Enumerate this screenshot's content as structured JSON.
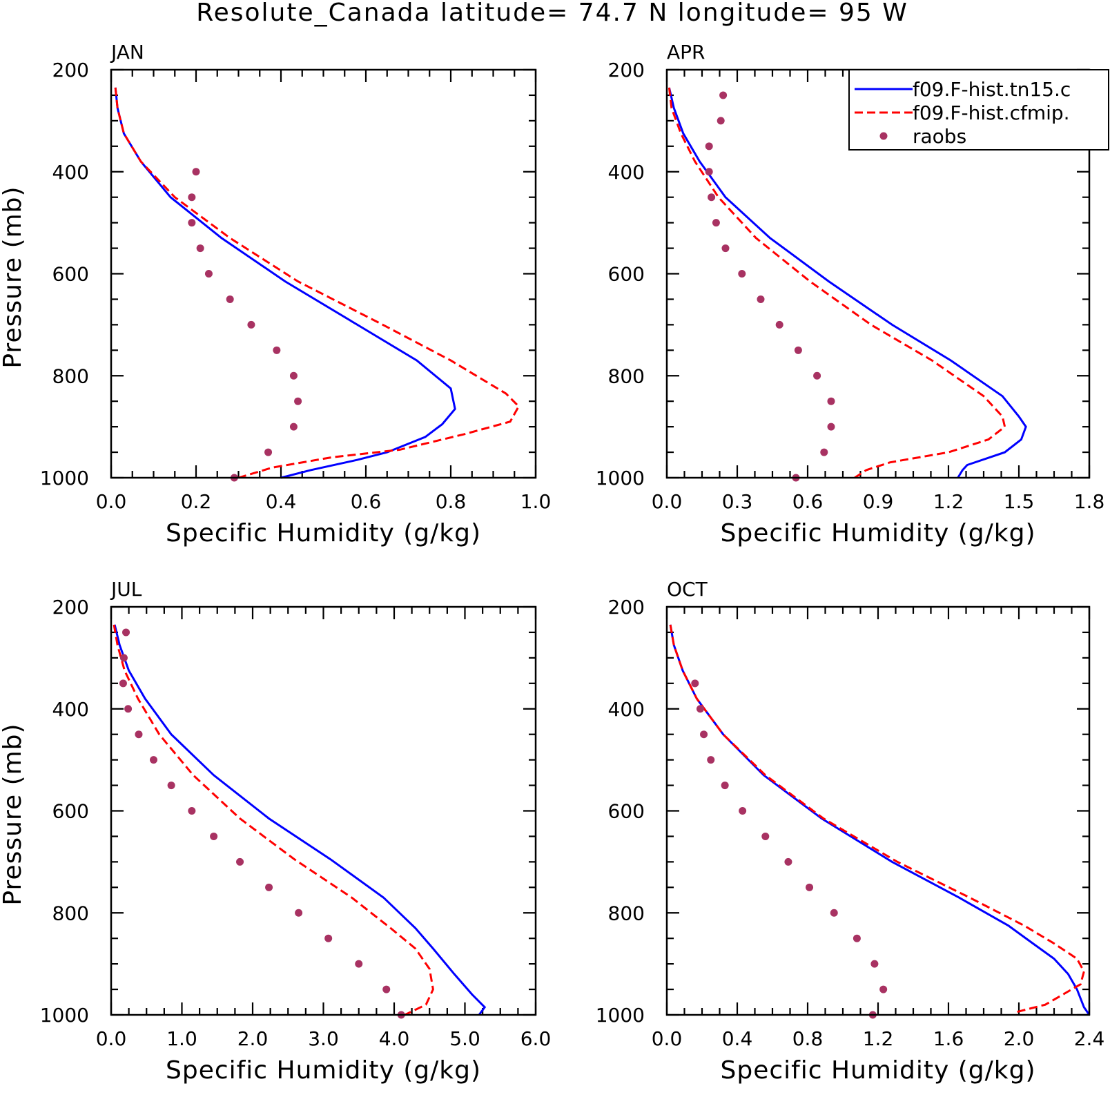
{
  "title": "Resolute_Canada  latitude= 74.7 N longitude= 95 W",
  "colors": {
    "model1": "#0000ff",
    "model2": "#ff0000",
    "obs": "#a83262",
    "axis": "#000000"
  },
  "legend": {
    "placement": "top-right of APR panel",
    "entries": [
      {
        "label": "f09.F-hist.tn15.c",
        "style": "solid",
        "color": "#0000ff"
      },
      {
        "label": "f09.F-hist.cfmip.",
        "style": "dashed",
        "color": "#ff0000"
      },
      {
        "label": "raobs",
        "style": "dot",
        "color": "#a83262"
      }
    ]
  },
  "chart_data": [
    {
      "type": "line",
      "panel_label": "JAN",
      "xlabel": "Specific Humidity (g/kg)",
      "ylabel": "Pressure (mb)",
      "xlim": [
        0,
        1.0
      ],
      "ylim": [
        1000,
        200
      ],
      "xticks": [
        "0.0",
        "0.2",
        "0.4",
        "0.6",
        "0.8",
        "1.0"
      ],
      "yticks": [
        "200",
        "400",
        "600",
        "800",
        "1000"
      ],
      "series": [
        {
          "name": "f09.F-hist.tn15.c",
          "style": "solid",
          "q": [
            0.01,
            0.015,
            0.03,
            0.07,
            0.14,
            0.26,
            0.41,
            0.58,
            0.72,
            0.8,
            0.81,
            0.78,
            0.74,
            0.65,
            0.58,
            0.47,
            0.4
          ],
          "p": [
            235,
            275,
            325,
            380,
            450,
            530,
            615,
            700,
            770,
            825,
            865,
            895,
            920,
            950,
            965,
            985,
            1000
          ]
        },
        {
          "name": "f09.F-hist.cfmip.",
          "style": "dashed",
          "q": [
            0.01,
            0.015,
            0.03,
            0.07,
            0.15,
            0.28,
            0.44,
            0.64,
            0.8,
            0.93,
            0.96,
            0.94,
            0.83,
            0.68,
            0.52,
            0.38,
            0.3
          ],
          "p": [
            235,
            275,
            325,
            380,
            450,
            530,
            615,
            700,
            770,
            835,
            860,
            890,
            915,
            945,
            960,
            980,
            1000
          ]
        },
        {
          "name": "raobs",
          "style": "dot",
          "q": [
            0.2,
            0.19,
            0.19,
            0.21,
            0.23,
            0.28,
            0.33,
            0.39,
            0.43,
            0.44,
            0.43,
            0.37,
            0.29
          ],
          "p": [
            400,
            450,
            500,
            550,
            600,
            650,
            700,
            750,
            800,
            850,
            900,
            950,
            1000
          ]
        }
      ]
    },
    {
      "type": "line",
      "panel_label": "APR",
      "xlabel": "Specific Humidity (g/kg)",
      "ylabel": "",
      "xlim": [
        0,
        1.8
      ],
      "ylim": [
        1000,
        200
      ],
      "xticks": [
        "0.0",
        "0.3",
        "0.6",
        "0.9",
        "1.2",
        "1.5",
        "1.8"
      ],
      "yticks": [
        "200",
        "400",
        "600",
        "800",
        "1000"
      ],
      "series": [
        {
          "name": "f09.F-hist.tn15.c",
          "style": "solid",
          "q": [
            0.01,
            0.03,
            0.07,
            0.14,
            0.25,
            0.44,
            0.69,
            0.96,
            1.21,
            1.43,
            1.5,
            1.53,
            1.51,
            1.44,
            1.28,
            1.26,
            1.24
          ],
          "p": [
            235,
            275,
            325,
            380,
            450,
            530,
            615,
            700,
            770,
            840,
            880,
            900,
            925,
            950,
            975,
            985,
            1000
          ]
        },
        {
          "name": "f09.F-hist.cfmip.",
          "style": "dashed",
          "q": [
            0.01,
            0.02,
            0.06,
            0.12,
            0.22,
            0.38,
            0.61,
            0.87,
            1.13,
            1.35,
            1.43,
            1.44,
            1.37,
            1.2,
            0.95,
            0.85,
            0.8
          ],
          "p": [
            235,
            275,
            325,
            380,
            450,
            530,
            615,
            700,
            770,
            840,
            880,
            900,
            925,
            950,
            970,
            985,
            1000
          ]
        },
        {
          "name": "raobs",
          "style": "dot",
          "q": [
            0.24,
            0.23,
            0.18,
            0.18,
            0.19,
            0.21,
            0.25,
            0.32,
            0.4,
            0.48,
            0.56,
            0.64,
            0.7,
            0.7,
            0.67,
            0.55
          ],
          "p": [
            250,
            300,
            350,
            400,
            450,
            500,
            550,
            600,
            650,
            700,
            750,
            800,
            850,
            900,
            950,
            1000
          ]
        }
      ]
    },
    {
      "type": "line",
      "panel_label": "JUL",
      "xlabel": "Specific Humidity (g/kg)",
      "ylabel": "Pressure (mb)",
      "xlim": [
        0,
        6.0
      ],
      "ylim": [
        1000,
        200
      ],
      "xticks": [
        "0.0",
        "1.0",
        "2.0",
        "3.0",
        "4.0",
        "5.0",
        "6.0"
      ],
      "yticks": [
        "200",
        "400",
        "600",
        "800",
        "1000"
      ],
      "series": [
        {
          "name": "f09.F-hist.tn15.c",
          "style": "solid",
          "q": [
            0.05,
            0.12,
            0.25,
            0.48,
            0.85,
            1.45,
            2.23,
            3.1,
            3.85,
            4.3,
            4.55,
            4.85,
            5.1,
            5.28,
            5.2
          ],
          "p": [
            235,
            275,
            325,
            380,
            450,
            530,
            615,
            695,
            770,
            830,
            870,
            920,
            960,
            985,
            1000
          ]
        },
        {
          "name": "f09.F-hist.cfmip.",
          "style": "dashed",
          "q": [
            0.04,
            0.09,
            0.19,
            0.38,
            0.68,
            1.16,
            1.82,
            2.59,
            3.4,
            3.95,
            4.3,
            4.5,
            4.55,
            4.45,
            4.15
          ],
          "p": [
            235,
            275,
            325,
            380,
            450,
            530,
            615,
            695,
            770,
            830,
            870,
            910,
            950,
            980,
            1000
          ]
        },
        {
          "name": "raobs",
          "style": "dot",
          "q": [
            0.21,
            0.18,
            0.17,
            0.24,
            0.39,
            0.6,
            0.85,
            1.14,
            1.45,
            1.82,
            2.23,
            2.65,
            3.07,
            3.5,
            3.89,
            4.1
          ],
          "p": [
            250,
            300,
            350,
            400,
            450,
            500,
            550,
            600,
            650,
            700,
            750,
            800,
            850,
            900,
            950,
            1000
          ]
        }
      ]
    },
    {
      "type": "line",
      "panel_label": "OCT",
      "xlabel": "Specific Humidity (g/kg)",
      "ylabel": "",
      "xlim": [
        0,
        2.4
      ],
      "ylim": [
        1000,
        200
      ],
      "xticks": [
        "0.0",
        "0.4",
        "0.8",
        "1.2",
        "1.6",
        "2.0",
        "2.4"
      ],
      "yticks": [
        "200",
        "400",
        "600",
        "800",
        "1000"
      ],
      "series": [
        {
          "name": "f09.F-hist.tn15.c",
          "style": "solid",
          "q": [
            0.02,
            0.04,
            0.09,
            0.17,
            0.32,
            0.55,
            0.88,
            1.28,
            1.66,
            1.94,
            2.08,
            2.2,
            2.28,
            2.33,
            2.37,
            2.4
          ],
          "p": [
            235,
            275,
            325,
            380,
            450,
            530,
            615,
            700,
            770,
            825,
            860,
            890,
            920,
            950,
            985,
            1000
          ]
        },
        {
          "name": "f09.F-hist.cfmip.",
          "style": "dashed",
          "q": [
            0.02,
            0.04,
            0.09,
            0.17,
            0.32,
            0.56,
            0.89,
            1.31,
            1.72,
            2.03,
            2.2,
            2.33,
            2.37,
            2.35,
            2.15,
            1.98
          ],
          "p": [
            235,
            275,
            325,
            380,
            450,
            530,
            615,
            700,
            770,
            825,
            860,
            890,
            915,
            940,
            980,
            995
          ]
        },
        {
          "name": "raobs",
          "style": "dot",
          "q": [
            0.16,
            0.19,
            0.21,
            0.25,
            0.33,
            0.43,
            0.56,
            0.69,
            0.81,
            0.95,
            1.08,
            1.18,
            1.23,
            1.17
          ],
          "p": [
            350,
            400,
            450,
            500,
            550,
            600,
            650,
            700,
            750,
            800,
            850,
            900,
            950,
            1000
          ]
        }
      ]
    }
  ]
}
